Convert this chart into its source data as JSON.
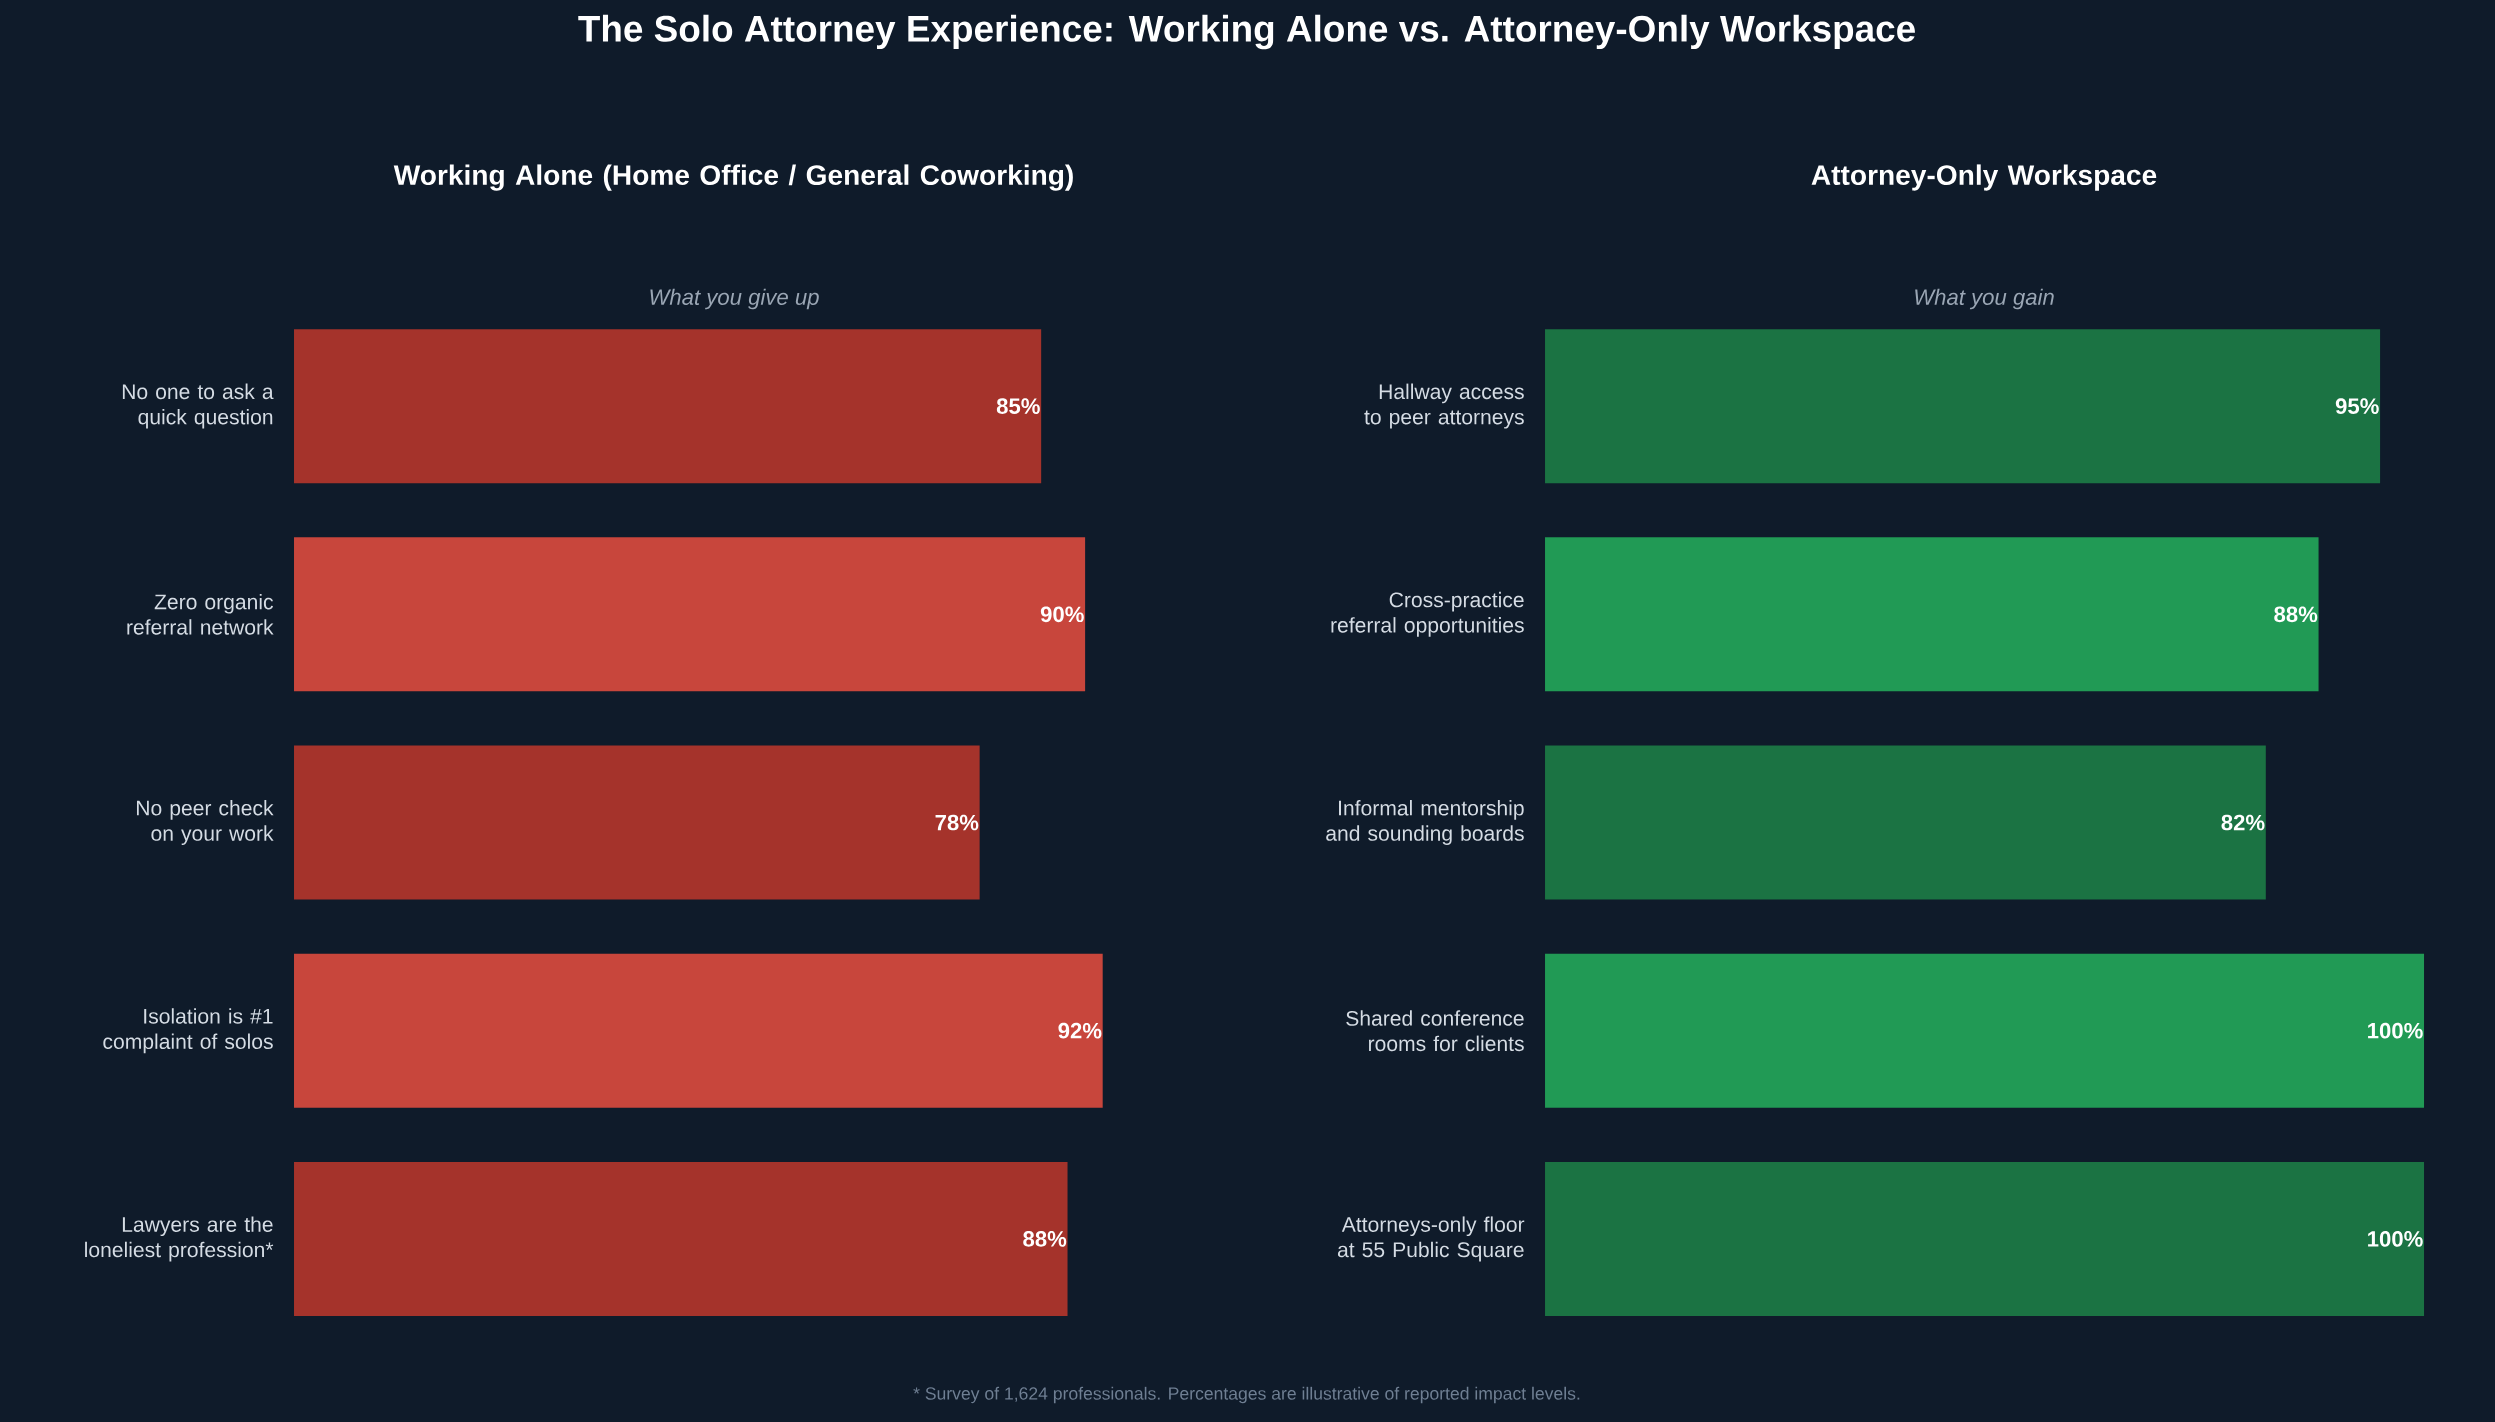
{
  "chart_data": [
    {
      "type": "bar",
      "orientation": "horizontal",
      "title": "Working Alone (Home Office / General Coworking)",
      "subtitle": "What you give up",
      "categories": [
        "No one to ask a quick question",
        "Zero organic referral network",
        "No peer check on your work",
        "Isolation is #1 complaint of solos",
        "Lawyers are the loneliest profession*"
      ],
      "values": [
        85,
        90,
        78,
        92,
        88
      ],
      "value_labels": [
        "85%",
        "90%",
        "78%",
        "92%",
        "88%"
      ],
      "colors": [
        "#a5332b",
        "#c8463c",
        "#a5332b",
        "#c8463c",
        "#a5332b"
      ],
      "tick_labels": "y",
      "annotations": [
        "The Solo Attorney Experience: Working Alone vs. Attorney-Only Workspace",
        "* Survey of 1,624 professionals. Percentages are illustrative of reported impact levels."
      ]
    },
    {
      "type": "bar",
      "orientation": "horizontal",
      "title": "Attorney-Only Workspace",
      "subtitle": "What you gain",
      "categories": [
        "Hallway access to peer attorneys",
        "Cross-practice referral opportunities",
        "Informal mentorship and sounding boards",
        "Shared conference rooms for clients",
        "Attorneys-only floor at 55 Public Square"
      ],
      "values": [
        95,
        88,
        82,
        100,
        100
      ],
      "value_labels": [
        "95%",
        "88%",
        "82%",
        "100%",
        "100%"
      ],
      "colors": [
        "#1b7343",
        "#219a55",
        "#1b7343",
        "#219a55",
        "#1b7343"
      ],
      "tick_labels": "y"
    }
  ]
}
